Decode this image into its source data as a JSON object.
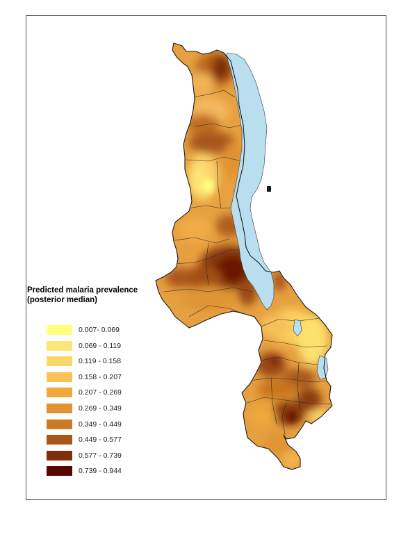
{
  "legend": {
    "title_line1": "Predicted malaria prevalence",
    "title_line2": "(posterior median)",
    "classes": [
      {
        "label": "0.007- 0.069",
        "color": "#ffff80"
      },
      {
        "label": "0.069 - 0.119",
        "color": "#fde678"
      },
      {
        "label": "0.119 - 0.158",
        "color": "#fbd66b"
      },
      {
        "label": "0.158 - 0.207",
        "color": "#f8c354"
      },
      {
        "label": "0.207 - 0.269",
        "color": "#f0a83a"
      },
      {
        "label": "0.269 - 0.349",
        "color": "#e2922f"
      },
      {
        "label": "0.349 - 0.449",
        "color": "#cc7a24"
      },
      {
        "label": "0.449 - 0.577",
        "color": "#a8561a"
      },
      {
        "label": "0.577 - 0.739",
        "color": "#7f2f0c"
      },
      {
        "label": "0.739 - 0.944",
        "color": "#5a0404"
      }
    ]
  },
  "colors": {
    "lake": "#b9def0",
    "border": "#1a1a1a"
  }
}
